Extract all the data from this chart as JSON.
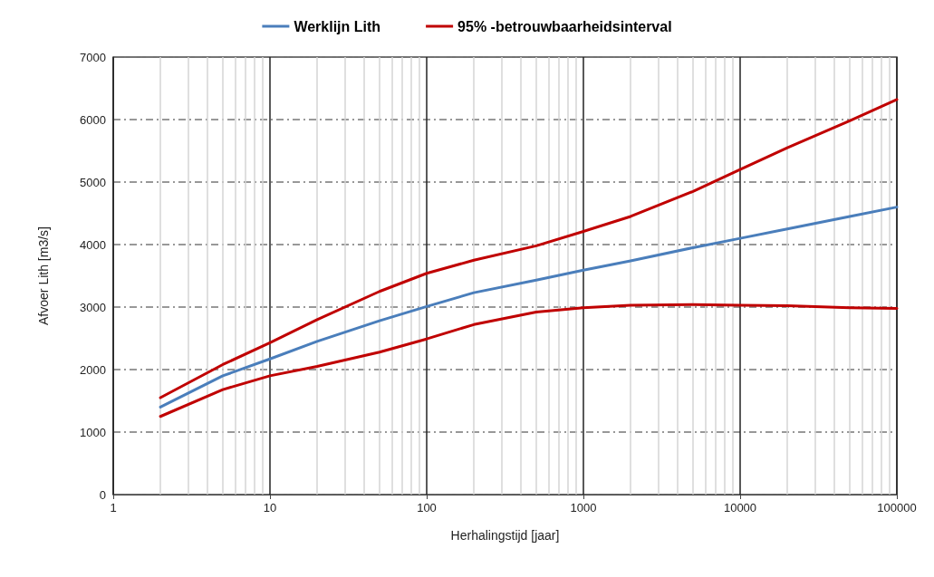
{
  "chart_data": {
    "type": "line",
    "xlabel": "Herhalingstijd [jaar]",
    "ylabel": "Afvoer Lith [m3/s]",
    "x": [
      2,
      5,
      10,
      20,
      50,
      100,
      200,
      500,
      1000,
      2000,
      5000,
      10000,
      20000,
      50000,
      100000
    ],
    "series": [
      {
        "name": "Werklijn Lith",
        "color": "#4a7ebb",
        "values": [
          1400,
          1900,
          2170,
          2450,
          2780,
          3010,
          3230,
          3430,
          3590,
          3740,
          3950,
          4100,
          4250,
          4450,
          4600
        ]
      },
      {
        "name": "95% -betrouwbaarheidsinterval",
        "color": "#c00000",
        "values": [
          1550,
          2080,
          2430,
          2800,
          3250,
          3540,
          3750,
          3980,
          4210,
          4450,
          4850,
          5200,
          5550,
          5980,
          6320
        ]
      },
      {
        "color": "#c00000",
        "values": [
          1250,
          1680,
          1900,
          2050,
          2280,
          2490,
          2720,
          2920,
          2990,
          3030,
          3040,
          3030,
          3020,
          2990,
          2980
        ]
      }
    ],
    "log": "x",
    "xlim": [
      1,
      100000
    ],
    "xticks": [
      1,
      10,
      100,
      1000,
      10000,
      100000
    ],
    "ylim": [
      0,
      7000
    ],
    "yticks": [
      0,
      1000,
      2000,
      3000,
      4000,
      5000,
      6000,
      7000
    ],
    "grid": true,
    "legend": "top",
    "marker": "none",
    "line_style": "solid"
  }
}
